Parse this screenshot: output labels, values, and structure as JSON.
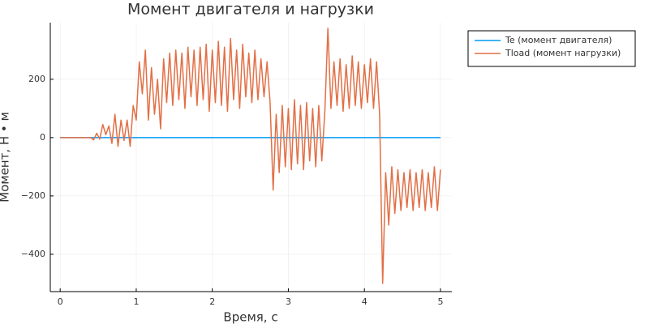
{
  "chart_data": {
    "type": "line",
    "title": "Момент двигателя и нагрузки",
    "x_label": "Время, с",
    "y_label": "Момент, Н • м",
    "xlim": [
      -0.13,
      5.15
    ],
    "ylim": [
      -528,
      394
    ],
    "xticks": [
      0,
      1,
      2,
      3,
      4,
      5
    ],
    "yticks": [
      {
        "value": -400,
        "label": "−400"
      },
      {
        "value": -200,
        "label": "−200"
      },
      0,
      200
    ],
    "grid": true,
    "legend": "outside-top-right",
    "series": [
      {
        "name": "Te (момент двигателя)",
        "color": "#009af9",
        "x": [
          0,
          5
        ],
        "values": [
          0,
          0
        ]
      },
      {
        "name": "Tload (момент нагрузки)",
        "color": "#e26f46",
        "x": [
          0,
          0.04,
          0.08,
          0.12,
          0.16,
          0.2,
          0.24,
          0.28,
          0.32,
          0.36,
          0.4,
          0.44,
          0.48,
          0.52,
          0.56,
          0.6,
          0.64,
          0.68,
          0.72,
          0.76,
          0.8,
          0.84,
          0.88,
          0.92,
          0.96,
          1.0,
          1.04,
          1.08,
          1.12,
          1.16,
          1.2,
          1.24,
          1.28,
          1.32,
          1.36,
          1.4,
          1.44,
          1.48,
          1.52,
          1.56,
          1.6,
          1.64,
          1.68,
          1.72,
          1.76,
          1.8,
          1.84,
          1.88,
          1.92,
          1.96,
          2.0,
          2.04,
          2.08,
          2.12,
          2.16,
          2.2,
          2.24,
          2.28,
          2.32,
          2.36,
          2.4,
          2.44,
          2.48,
          2.52,
          2.56,
          2.6,
          2.64,
          2.68,
          2.72,
          2.76,
          2.8,
          2.84,
          2.88,
          2.92,
          2.96,
          3.0,
          3.04,
          3.08,
          3.12,
          3.16,
          3.2,
          3.24,
          3.28,
          3.32,
          3.36,
          3.4,
          3.44,
          3.48,
          3.52,
          3.56,
          3.6,
          3.64,
          3.68,
          3.72,
          3.76,
          3.8,
          3.84,
          3.88,
          3.92,
          3.96,
          4.0,
          4.04,
          4.08,
          4.12,
          4.16,
          4.2,
          4.24,
          4.28,
          4.32,
          4.36,
          4.4,
          4.44,
          4.48,
          4.52,
          4.56,
          4.6,
          4.64,
          4.68,
          4.72,
          4.76,
          4.8,
          4.84,
          4.88,
          4.92,
          4.96,
          5.0
        ],
        "values": [
          0,
          0,
          0,
          0,
          0,
          0,
          0,
          0,
          0,
          0,
          0,
          -8,
          15,
          -5,
          45,
          10,
          40,
          -20,
          80,
          -30,
          60,
          -10,
          60,
          -30,
          110,
          60,
          260,
          150,
          300,
          60,
          240,
          80,
          200,
          30,
          270,
          120,
          290,
          110,
          300,
          130,
          290,
          100,
          310,
          140,
          300,
          110,
          310,
          130,
          320,
          90,
          300,
          120,
          330,
          110,
          310,
          90,
          340,
          130,
          300,
          100,
          320,
          140,
          290,
          120,
          300,
          130,
          270,
          140,
          260,
          120,
          -180,
          80,
          -120,
          110,
          -100,
          100,
          -110,
          130,
          -90,
          110,
          -110,
          120,
          -80,
          100,
          -100,
          110,
          -80,
          90,
          375,
          100,
          260,
          110,
          270,
          90,
          250,
          100,
          280,
          110,
          260,
          100,
          250,
          120,
          270,
          100,
          260,
          80,
          -500,
          -120,
          -300,
          -100,
          -260,
          -110,
          -250,
          -120,
          -240,
          -110,
          -250,
          -120,
          -240,
          -110,
          -250,
          -120,
          -240,
          -100,
          -250,
          -110
        ]
      }
    ]
  }
}
